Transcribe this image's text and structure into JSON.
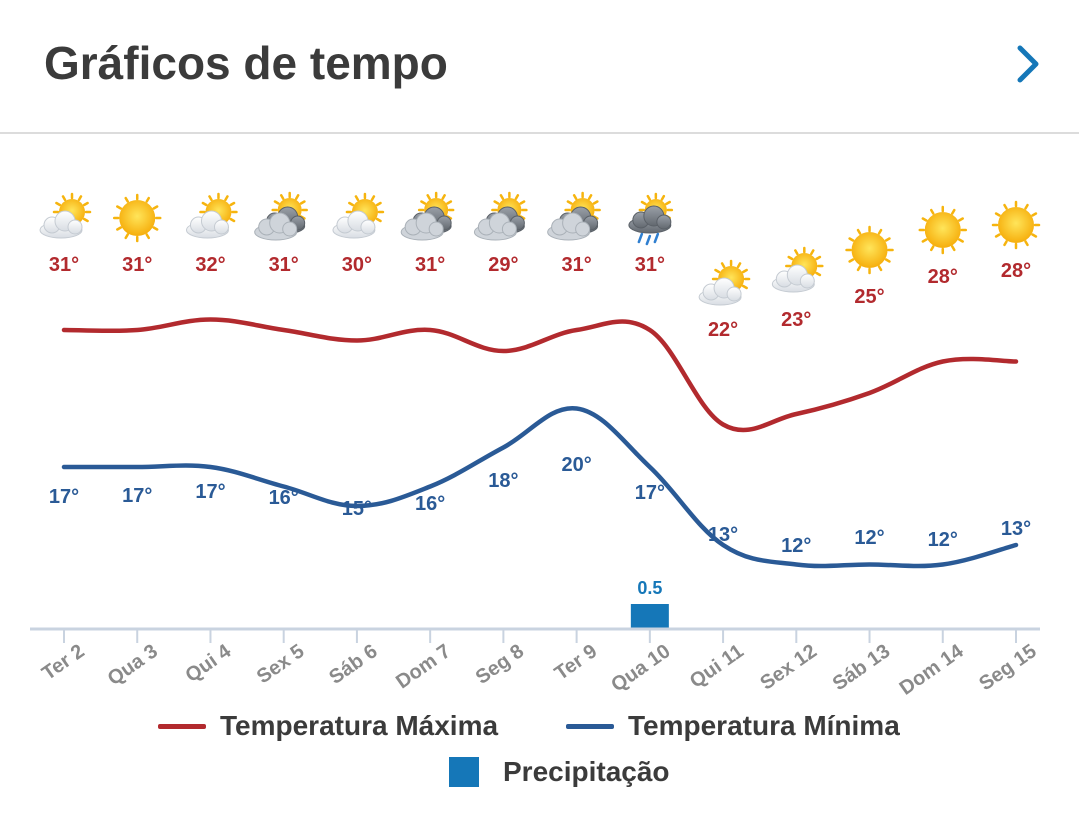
{
  "header": {
    "title": "Gráficos de tempo",
    "chevron_icon": "chevron-right-icon"
  },
  "colors": {
    "max": "#b22a2e",
    "min": "#2a5a96",
    "precip": "#1577b8",
    "axis": "#c9d3e0"
  },
  "chart_data": {
    "type": "line",
    "categories": [
      "Ter 2",
      "Qua 3",
      "Qui 4",
      "Sex 5",
      "Sáb 6",
      "Dom 7",
      "Seg 8",
      "Ter 9",
      "Qua 10",
      "Qui 11",
      "Sex 12",
      "Sáb 13",
      "Dom 14",
      "Seg 15"
    ],
    "icons": [
      "partly-cloudy-icon",
      "sun-icon",
      "partly-cloudy-icon",
      "cloudy-icon",
      "partly-cloudy-icon",
      "cloudy-icon",
      "cloudy-icon",
      "cloudy-icon",
      "rain-icon",
      "partly-cloudy-icon",
      "partly-cloudy-icon",
      "sun-icon",
      "sun-icon",
      "sun-icon"
    ],
    "series": [
      {
        "name": "Temperatura Máxima",
        "values": [
          31,
          31,
          32,
          31,
          30,
          31,
          29,
          31,
          31,
          22,
          23,
          25,
          28,
          28
        ]
      },
      {
        "name": "Temperatura Mínima",
        "values": [
          17,
          17,
          17,
          16,
          15,
          16,
          18,
          20,
          17,
          13,
          12,
          12,
          12,
          13
        ]
      }
    ],
    "precipitation": {
      "name": "Precipitação",
      "values": [
        0,
        0,
        0,
        0,
        0,
        0,
        0,
        0,
        0.5,
        0,
        0,
        0,
        0,
        0
      ]
    },
    "value_suffix": "°",
    "legend_position": "bottom"
  }
}
